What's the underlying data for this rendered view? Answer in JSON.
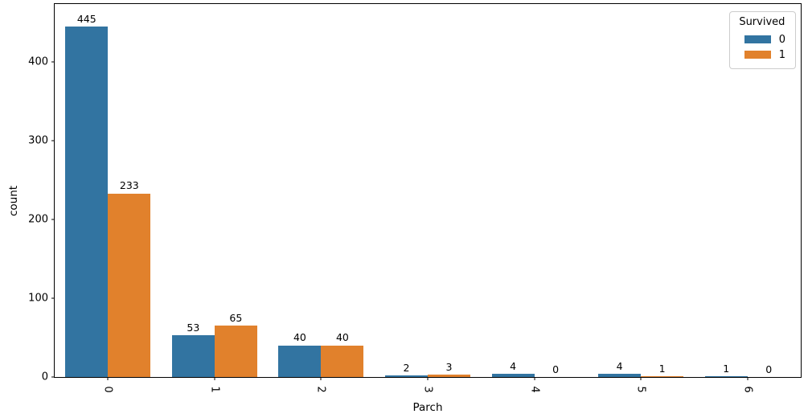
{
  "chart_data": {
    "type": "bar",
    "grouped": true,
    "title": "",
    "xlabel": "Parch",
    "ylabel": "count",
    "categories": [
      "0",
      "1",
      "2",
      "3",
      "4",
      "5",
      "6"
    ],
    "series": [
      {
        "name": "0",
        "color": "#3274a1",
        "values": [
          445,
          53,
          40,
          2,
          4,
          4,
          1
        ]
      },
      {
        "name": "1",
        "color": "#e1812c",
        "values": [
          233,
          65,
          40,
          3,
          0,
          1,
          0
        ]
      }
    ],
    "bar_labels_shown": true,
    "ylim": [
      0,
      474
    ],
    "yticks": [
      0,
      100,
      200,
      300,
      400
    ],
    "xtick_rotation_degrees": 90,
    "grid": false,
    "legend": {
      "title": "Survived",
      "position": "upper right",
      "entries": [
        "0",
        "1"
      ]
    }
  },
  "colors": {
    "background": "#ffffff",
    "spine": "#000000",
    "text": "#000000",
    "legend_border": "#cccccc",
    "series_0": "#3274a1",
    "series_1": "#e1812c"
  }
}
